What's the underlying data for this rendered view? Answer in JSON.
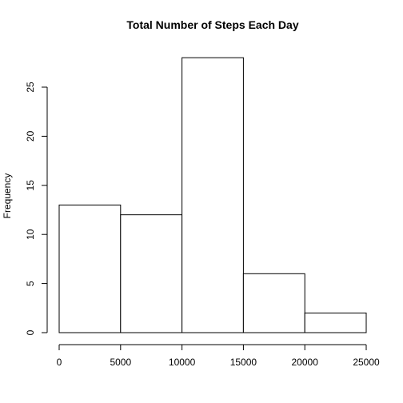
{
  "chart_data": {
    "type": "bar",
    "title": "Total Number of Steps Each Day",
    "xlabel": "",
    "ylabel": "Frequency",
    "bins": [
      {
        "from": 0,
        "to": 5000,
        "count": 13
      },
      {
        "from": 5000,
        "to": 10000,
        "count": 12
      },
      {
        "from": 10000,
        "to": 15000,
        "count": 28
      },
      {
        "from": 15000,
        "to": 20000,
        "count": 6
      },
      {
        "from": 20000,
        "to": 25000,
        "count": 2
      }
    ],
    "x_ticks": [
      0,
      5000,
      10000,
      15000,
      20000,
      25000
    ],
    "x_tick_labels": [
      "0",
      "5000",
      "10000",
      "15000",
      "20000",
      "25000"
    ],
    "y_ticks": [
      0,
      5,
      10,
      15,
      20,
      25
    ],
    "y_tick_labels": [
      "0",
      "5",
      "10",
      "15",
      "20",
      "25"
    ],
    "xlim": [
      0,
      25000
    ],
    "ylim": [
      0,
      28
    ],
    "grid": false,
    "legend": "none",
    "bar_fill": "#ffffff",
    "bar_stroke": "#000000"
  }
}
